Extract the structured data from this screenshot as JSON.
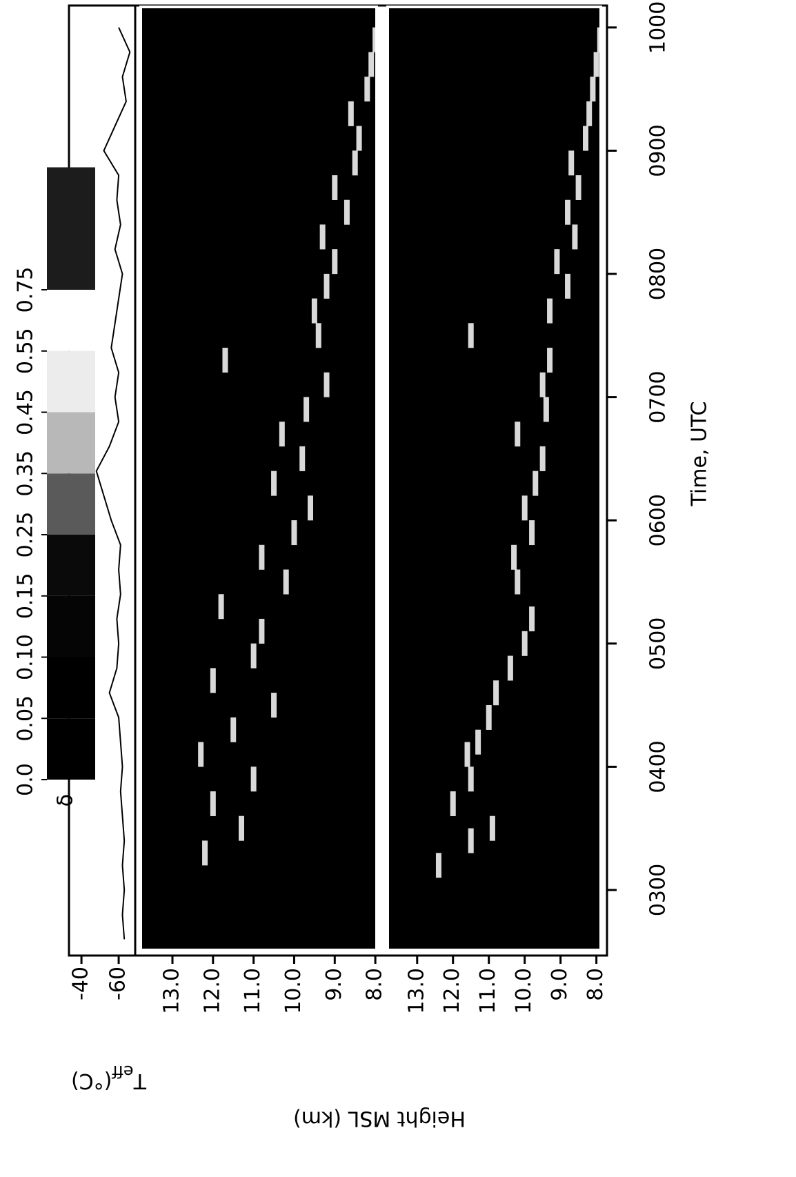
{
  "chart_data": [
    {
      "type": "line",
      "ylabel": "T",
      "ylabel_sub": "eff",
      "ylabel_unit": "(°C)",
      "x": [
        2.6,
        2.8,
        3.0,
        3.2,
        3.4,
        3.6,
        3.8,
        4.0,
        4.2,
        4.4,
        4.6,
        4.8,
        5.0,
        5.2,
        5.4,
        5.6,
        5.8,
        6.0,
        6.2,
        6.4,
        6.6,
        6.8,
        7.0,
        7.2,
        7.4,
        7.6,
        7.8,
        8.0,
        8.2,
        8.4,
        8.6,
        8.8,
        9.0,
        9.2,
        9.4,
        9.6,
        9.8,
        10.0
      ],
      "values": [
        -63,
        -62,
        -63,
        -62,
        -63,
        -62,
        -61,
        -62,
        -61,
        -60,
        -55,
        -59,
        -60,
        -59,
        -61,
        -60,
        -61,
        -56,
        -52,
        -48,
        -55,
        -60,
        -58,
        -60,
        -56,
        -58,
        -60,
        -62,
        -58,
        -61,
        -59,
        -60,
        -52,
        -58,
        -64,
        -62,
        -66,
        -60
      ],
      "color": "#000000",
      "xlim": [
        2.468,
        10.167
      ],
      "ylim": [
        -68.5,
        -33.3
      ],
      "yticks": [
        -60,
        -40
      ]
    },
    {
      "type": "scatter",
      "ylabel": "Height MSL (km)",
      "background": "#000000",
      "color": "#ffffff",
      "x": [
        3.3,
        3.5,
        3.7,
        3.9,
        4.1,
        4.3,
        4.5,
        4.7,
        4.9,
        5.1,
        5.3,
        5.5,
        5.7,
        5.9,
        6.1,
        6.3,
        6.5,
        6.7,
        6.9,
        7.1,
        7.3,
        7.5,
        7.7,
        7.9,
        8.1,
        8.3,
        8.5,
        8.7,
        8.9,
        9.1,
        9.3,
        9.5,
        9.7,
        9.9
      ],
      "values": [
        12.2,
        11.3,
        12.0,
        11.0,
        12.3,
        11.5,
        10.5,
        12.0,
        11.0,
        10.8,
        11.8,
        10.2,
        10.8,
        10.0,
        9.6,
        10.5,
        9.8,
        10.3,
        9.7,
        9.2,
        11.7,
        9.4,
        9.5,
        9.2,
        9.0,
        9.3,
        8.7,
        9.0,
        8.5,
        8.4,
        8.6,
        8.2,
        8.1,
        8.0
      ],
      "xlim": [
        2.468,
        10.167
      ],
      "ylim": [
        7.9,
        13.85
      ],
      "yticks": [
        {
          "value": 13,
          "label": "13.0"
        },
        {
          "value": 12,
          "label": "12.0"
        },
        {
          "value": 11,
          "label": "11.0"
        },
        {
          "value": 10,
          "label": "10.0"
        },
        {
          "value": 9,
          "label": "9.0"
        },
        {
          "value": 8,
          "label": "8.0"
        }
      ]
    },
    {
      "type": "scatter",
      "background": "#000000",
      "color": "#ffffff",
      "x": [
        3.2,
        3.4,
        3.5,
        3.7,
        3.9,
        4.1,
        4.2,
        4.4,
        4.6,
        4.8,
        5.0,
        5.2,
        5.5,
        5.7,
        5.9,
        6.1,
        6.3,
        6.5,
        6.7,
        6.9,
        7.1,
        7.3,
        7.5,
        7.7,
        7.9,
        8.1,
        8.3,
        8.5,
        8.7,
        8.9,
        9.1,
        9.3,
        9.5,
        9.7,
        9.9
      ],
      "values": [
        12.4,
        11.5,
        10.9,
        12.0,
        11.5,
        11.6,
        11.3,
        11.0,
        10.8,
        10.4,
        10.0,
        9.8,
        10.2,
        10.3,
        9.8,
        10.0,
        9.7,
        9.5,
        10.2,
        9.4,
        9.5,
        9.3,
        11.5,
        9.3,
        8.8,
        9.1,
        8.6,
        8.8,
        8.5,
        8.7,
        8.3,
        8.2,
        8.1,
        8.0,
        7.9
      ],
      "xlim": [
        2.468,
        10.167
      ],
      "ylim": [
        7.8,
        13.9
      ],
      "yticks": [
        {
          "value": 13,
          "label": "13.0"
        },
        {
          "value": 12,
          "label": "12.0"
        },
        {
          "value": 11,
          "label": "11.0"
        },
        {
          "value": 10,
          "label": "10.0"
        },
        {
          "value": 9,
          "label": "9.0"
        },
        {
          "value": 8,
          "label": "8.0"
        }
      ],
      "xlabel": "Time, UTC",
      "xticks": [
        {
          "value": 3,
          "label": "0300"
        },
        {
          "value": 4,
          "label": "0400"
        },
        {
          "value": 5,
          "label": "0500"
        },
        {
          "value": 6,
          "label": "0600"
        },
        {
          "value": 7,
          "label": "0700"
        },
        {
          "value": 8,
          "label": "0800"
        },
        {
          "value": 9,
          "label": "0900"
        },
        {
          "value": 10,
          "label": "1000"
        }
      ]
    },
    {
      "type": "colorbar",
      "label": "δ",
      "ticks": [
        {
          "value": 0,
          "label": "0.0"
        },
        0.05,
        {
          "value": 0.1,
          "label": "0.10"
        },
        0.15,
        0.25,
        0.35,
        0.45,
        0.55,
        0.75
      ],
      "colors": [
        "#000000",
        "#000000",
        "#050505",
        "#0a0a0a",
        "#5a5a5a",
        "#b8b8b8",
        "#ececec",
        "#ffffff",
        "#1c1c1c"
      ]
    }
  ]
}
